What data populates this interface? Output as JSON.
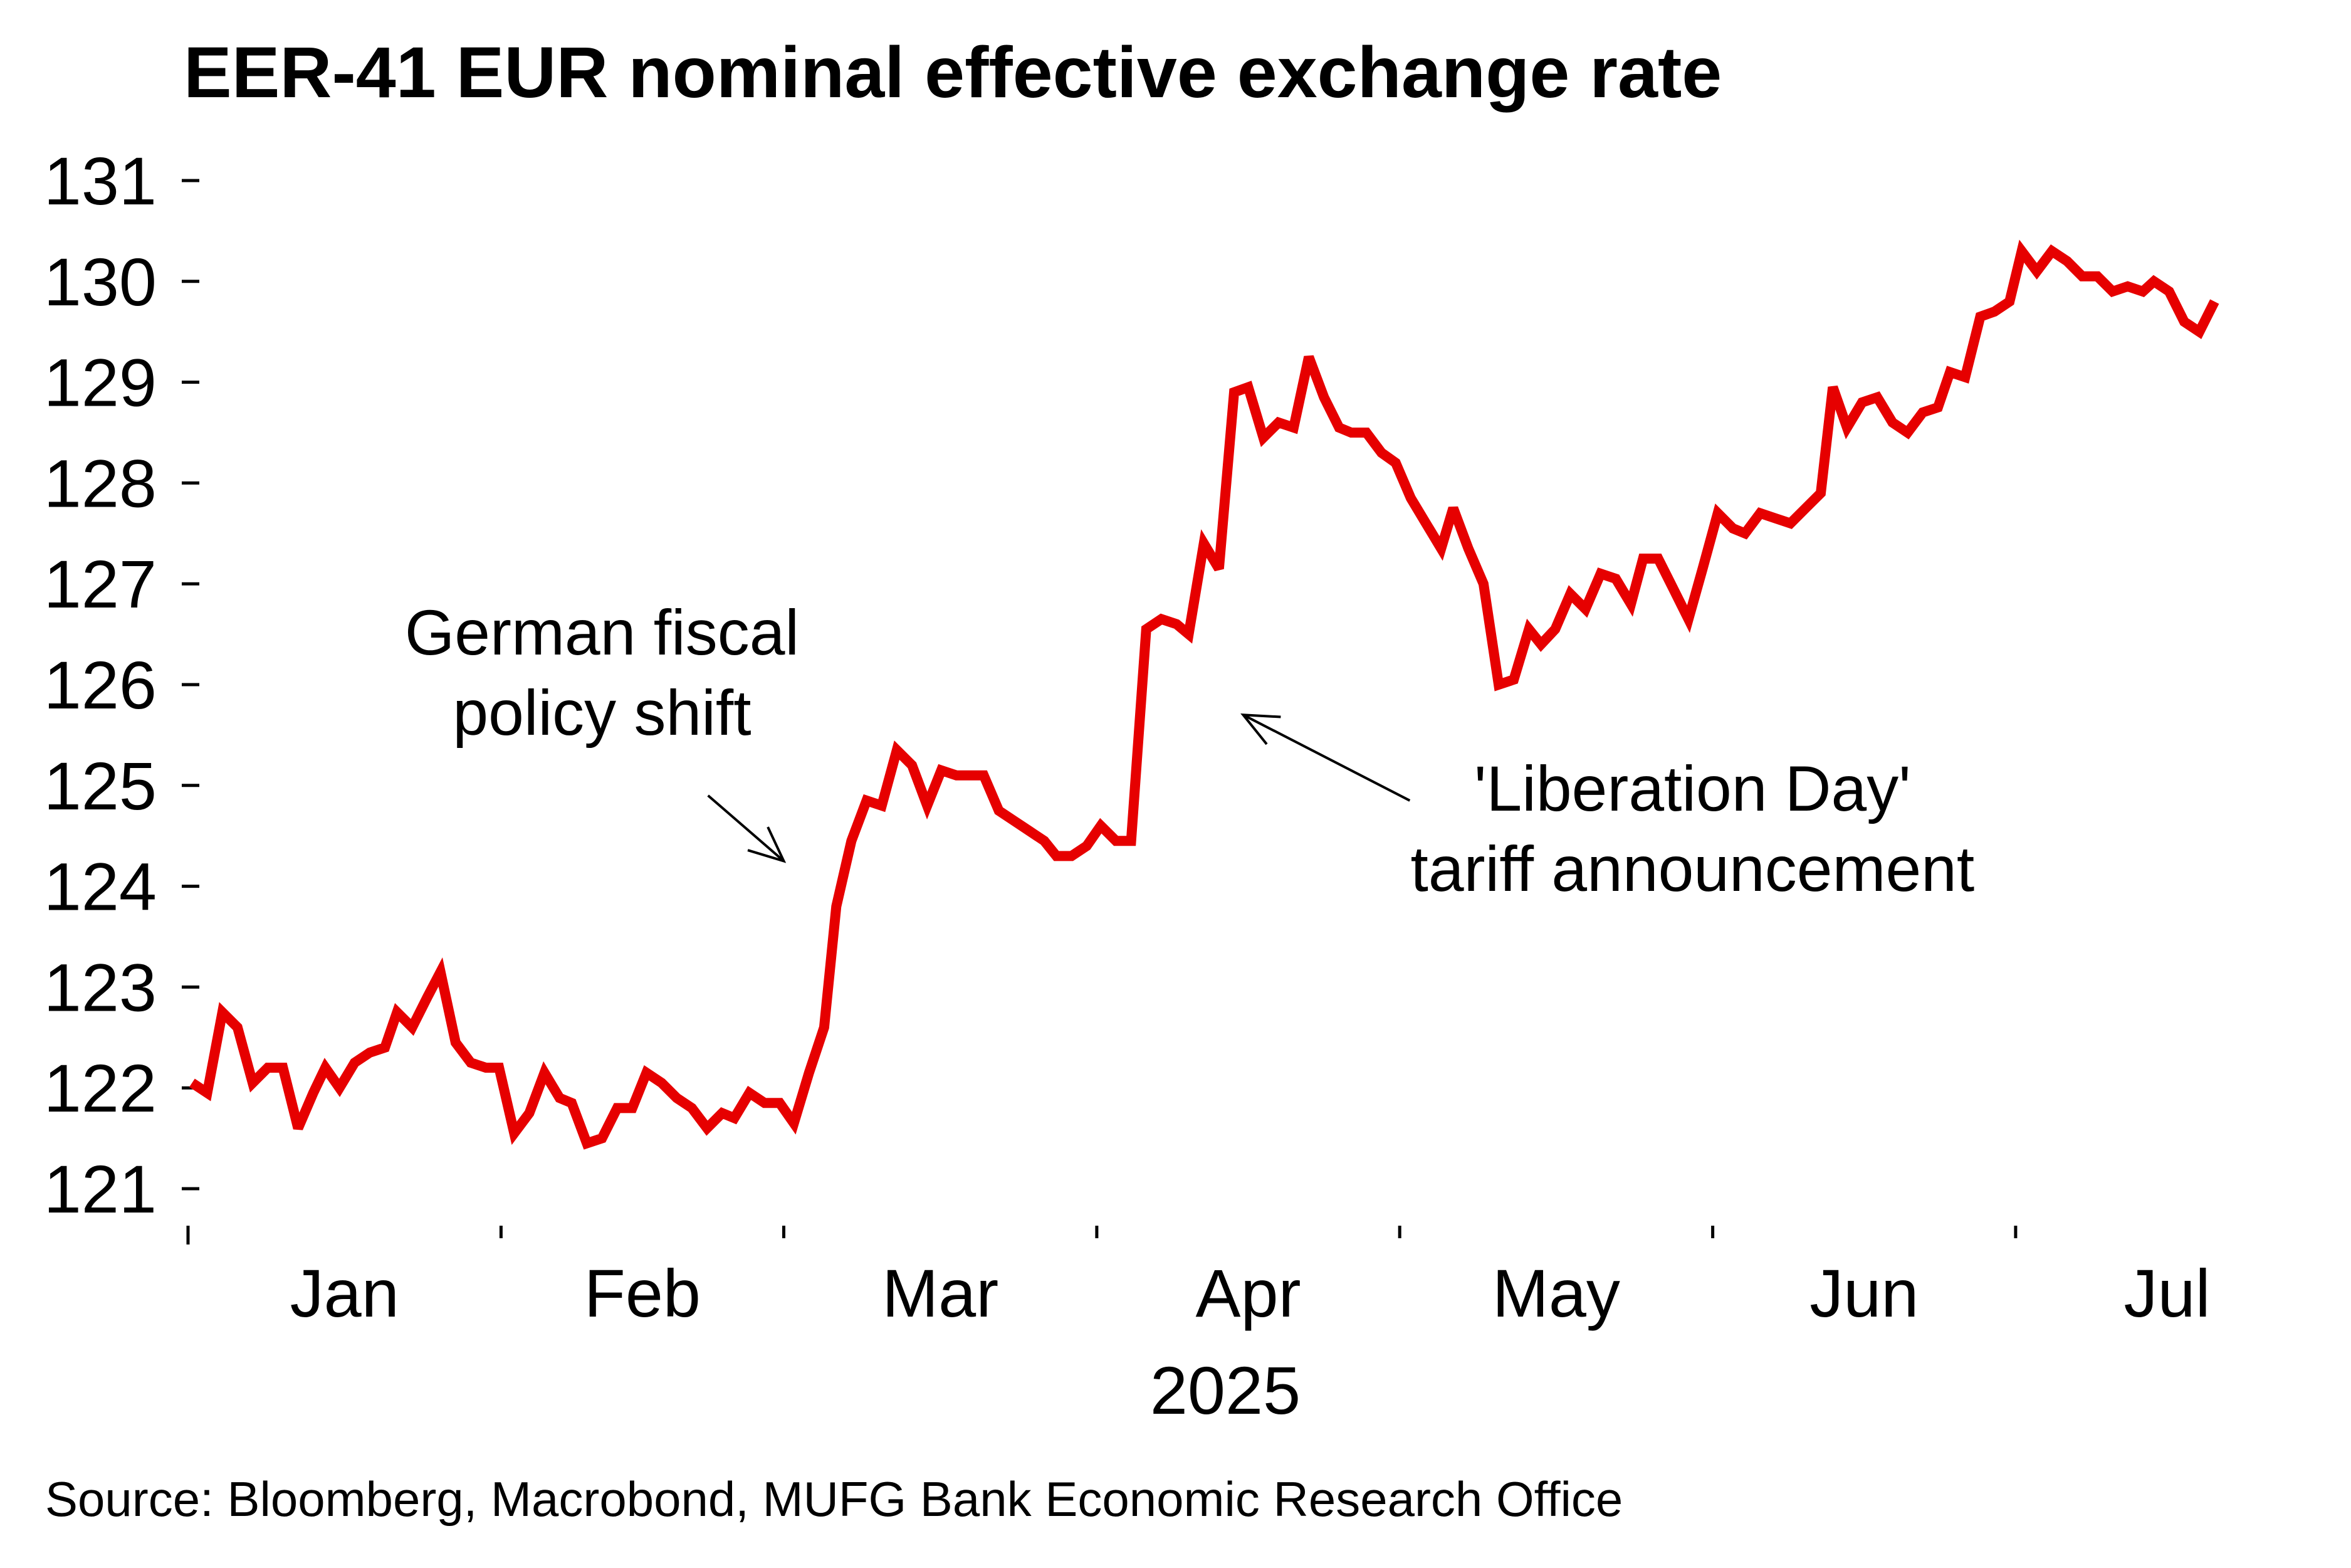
{
  "chart_data": {
    "type": "line",
    "title": "EER-41 EUR nominal effective exchange rate",
    "xlabel": "2025",
    "ylabel": "",
    "x_unit": "day of year 2025 (0 = 1 Jan)",
    "ylim": [
      121,
      131
    ],
    "xlim": [
      0,
      204
    ],
    "y_ticks": [
      "121",
      "122",
      "123",
      "124",
      "125",
      "126",
      "127",
      "128",
      "129",
      "130",
      "131"
    ],
    "x_tick_days": [
      0,
      31,
      59,
      90,
      120,
      151,
      181
    ],
    "x_month_labels": [
      {
        "label": "Jan",
        "day": 15.5
      },
      {
        "label": "Feb",
        "day": 45
      },
      {
        "label": "Mar",
        "day": 74.5
      },
      {
        "label": "Apr",
        "day": 105
      },
      {
        "label": "May",
        "day": 135.5
      },
      {
        "label": "Jun",
        "day": 166
      },
      {
        "label": "Jul",
        "day": 196
      }
    ],
    "grid": false,
    "legend": "none",
    "series": [
      {
        "name": "EER-41 EUR NEER",
        "color": "#e60000",
        "points": [
          [
            0.4,
            122.05
          ],
          [
            1.9,
            121.95
          ],
          [
            3.4,
            122.75
          ],
          [
            4.9,
            122.6
          ],
          [
            6.4,
            122.05
          ],
          [
            7.9,
            122.2
          ],
          [
            9.4,
            122.2
          ],
          [
            10.9,
            121.6
          ],
          [
            12.4,
            121.95
          ],
          [
            13.6,
            122.2
          ],
          [
            15.0,
            122.0
          ],
          [
            16.5,
            122.25
          ],
          [
            18.0,
            122.35
          ],
          [
            19.5,
            122.4
          ],
          [
            20.7,
            122.75
          ],
          [
            22.2,
            122.6
          ],
          [
            23.7,
            122.9
          ],
          [
            25.0,
            123.15
          ],
          [
            26.5,
            122.45
          ],
          [
            28.0,
            122.25
          ],
          [
            29.5,
            122.2
          ],
          [
            30.8,
            122.2
          ],
          [
            32.3,
            121.55
          ],
          [
            33.8,
            121.75
          ],
          [
            35.3,
            122.15
          ],
          [
            36.8,
            121.9
          ],
          [
            38.0,
            121.85
          ],
          [
            39.5,
            121.45
          ],
          [
            41.0,
            121.5
          ],
          [
            42.5,
            121.8
          ],
          [
            44.0,
            121.8
          ],
          [
            45.4,
            122.15
          ],
          [
            46.9,
            122.05
          ],
          [
            48.4,
            121.9
          ],
          [
            49.9,
            121.8
          ],
          [
            51.4,
            121.6
          ],
          [
            52.9,
            121.75
          ],
          [
            54.1,
            121.7
          ],
          [
            55.6,
            121.95
          ],
          [
            57.1,
            121.85
          ],
          [
            58.6,
            121.85
          ],
          [
            60.0,
            121.65
          ],
          [
            61.5,
            122.15
          ],
          [
            63.0,
            122.6
          ],
          [
            64.2,
            123.8
          ],
          [
            65.7,
            124.45
          ],
          [
            67.2,
            124.85
          ],
          [
            68.7,
            124.8
          ],
          [
            70.2,
            125.35
          ],
          [
            71.7,
            125.2
          ],
          [
            73.2,
            124.8
          ],
          [
            74.6,
            125.15
          ],
          [
            76.1,
            125.1
          ],
          [
            77.6,
            125.1
          ],
          [
            78.8,
            125.1
          ],
          [
            80.3,
            124.75
          ],
          [
            81.8,
            124.65
          ],
          [
            83.3,
            124.55
          ],
          [
            84.8,
            124.45
          ],
          [
            86.0,
            124.3
          ],
          [
            87.5,
            124.3
          ],
          [
            89.0,
            124.4
          ],
          [
            90.4,
            124.6
          ],
          [
            91.9,
            124.45
          ],
          [
            93.4,
            124.45
          ],
          [
            94.9,
            126.55
          ],
          [
            96.4,
            126.65
          ],
          [
            97.9,
            126.6
          ],
          [
            99.1,
            126.5
          ],
          [
            100.6,
            127.4
          ],
          [
            102.1,
            127.15
          ],
          [
            103.6,
            128.9
          ],
          [
            105.0,
            128.95
          ],
          [
            106.5,
            128.45
          ],
          [
            108.0,
            128.6
          ],
          [
            109.5,
            128.55
          ],
          [
            111.0,
            129.25
          ],
          [
            112.5,
            128.85
          ],
          [
            114.0,
            128.55
          ],
          [
            115.2,
            128.5
          ],
          [
            116.7,
            128.5
          ],
          [
            118.2,
            128.3
          ],
          [
            119.6,
            128.2
          ],
          [
            121.1,
            127.85
          ],
          [
            122.6,
            127.6
          ],
          [
            124.1,
            127.35
          ],
          [
            125.3,
            127.75
          ],
          [
            126.8,
            127.35
          ],
          [
            128.3,
            127.0
          ],
          [
            129.8,
            126.0
          ],
          [
            131.3,
            126.05
          ],
          [
            132.8,
            126.55
          ],
          [
            134.0,
            126.4
          ],
          [
            135.4,
            126.55
          ],
          [
            136.9,
            126.9
          ],
          [
            138.4,
            126.75
          ],
          [
            139.9,
            127.1
          ],
          [
            141.4,
            127.05
          ],
          [
            142.9,
            126.8
          ],
          [
            144.1,
            127.25
          ],
          [
            145.6,
            127.25
          ],
          [
            147.1,
            126.95
          ],
          [
            148.6,
            126.65
          ],
          [
            150.0,
            127.15
          ],
          [
            151.5,
            127.7
          ],
          [
            153.0,
            127.55
          ],
          [
            154.2,
            127.5
          ],
          [
            155.7,
            127.7
          ],
          [
            157.2,
            127.65
          ],
          [
            158.7,
            127.6
          ],
          [
            160.2,
            127.75
          ],
          [
            161.7,
            127.9
          ],
          [
            162.9,
            128.95
          ],
          [
            164.3,
            128.55
          ],
          [
            165.8,
            128.8
          ],
          [
            167.3,
            128.85
          ],
          [
            168.8,
            128.6
          ],
          [
            170.3,
            128.5
          ],
          [
            171.8,
            128.7
          ],
          [
            173.3,
            128.75
          ],
          [
            174.5,
            129.1
          ],
          [
            176.0,
            129.05
          ],
          [
            177.5,
            129.65
          ],
          [
            178.9,
            129.7
          ],
          [
            180.4,
            129.8
          ],
          [
            181.6,
            130.3
          ],
          [
            183.1,
            130.1
          ],
          [
            184.6,
            130.3
          ],
          [
            186.1,
            130.2
          ],
          [
            187.6,
            130.05
          ],
          [
            189.1,
            130.05
          ],
          [
            190.6,
            129.9
          ],
          [
            192.1,
            129.95
          ],
          [
            193.6,
            129.9
          ],
          [
            194.7,
            130.0
          ],
          [
            196.2,
            129.9
          ],
          [
            197.7,
            129.6
          ],
          [
            199.2,
            129.5
          ],
          [
            200.7,
            129.8
          ]
        ]
      }
    ],
    "annotations": [
      {
        "name": "german-fiscal",
        "lines": [
          "German fiscal",
          "policy shift"
        ],
        "text_center_day": 41,
        "text_value": 126.3,
        "arrow_from": [
          51.5,
          124.9
        ],
        "arrow_to": [
          59,
          124.25
        ]
      },
      {
        "name": "liberation-day",
        "lines": [
          "'Liberation Day'",
          "tariff announcement"
        ],
        "text_center_day": 149,
        "text_value": 124.75,
        "arrow_from": [
          121,
          124.85
        ],
        "arrow_to": [
          104.5,
          125.7
        ]
      }
    ],
    "source": "Source: Bloomberg, Macrobond, MUFG Bank Economic Research Office"
  }
}
